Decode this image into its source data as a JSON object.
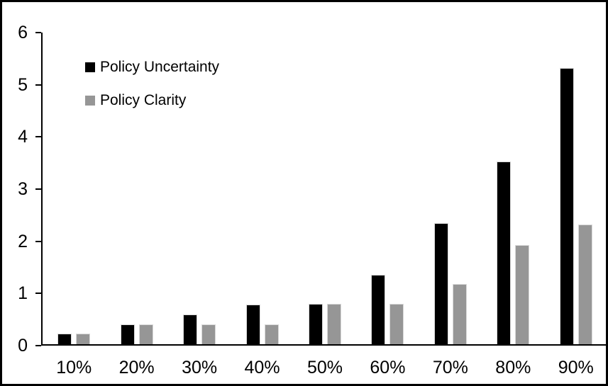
{
  "chart_data": {
    "type": "bar",
    "title": "",
    "xlabel": "",
    "ylabel": "",
    "categories": [
      "10%",
      "20%",
      "30%",
      "40%",
      "50%",
      "60%",
      "70%",
      "80%",
      "90%"
    ],
    "series": [
      {
        "name": "Policy Uncertainty",
        "color": "#000000",
        "values": [
          0.2,
          0.38,
          0.57,
          0.76,
          0.77,
          1.33,
          2.32,
          3.5,
          5.3
        ]
      },
      {
        "name": "Policy Clarity",
        "color": "#969696",
        "values": [
          0.2,
          0.38,
          0.38,
          0.38,
          0.77,
          0.77,
          1.15,
          1.9,
          2.3
        ]
      }
    ],
    "ylim": [
      0,
      6
    ],
    "yticks": [
      0,
      1,
      2,
      3,
      4,
      5,
      6
    ],
    "grid": false,
    "legend_position": "inside-top-left",
    "plot_background": "#ffffff",
    "frame_color": "#000000"
  }
}
